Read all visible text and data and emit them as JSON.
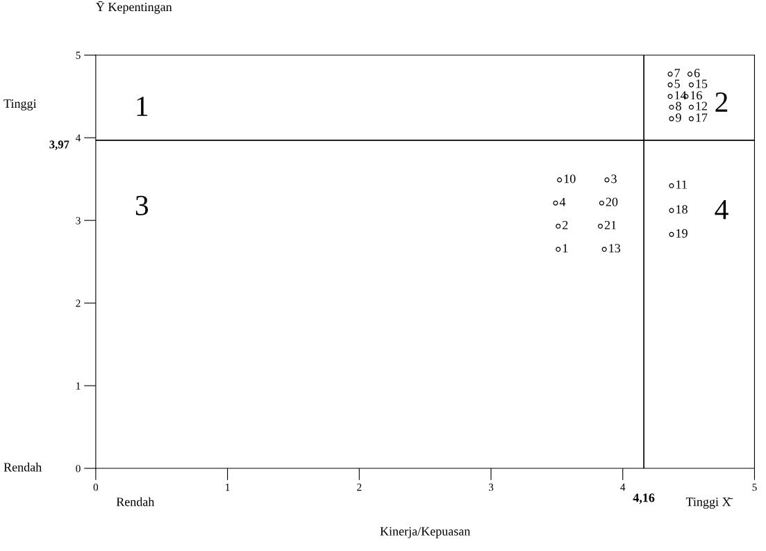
{
  "chart_data": {
    "type": "scatter",
    "ylabel": "Ȳ Kepentingan",
    "xlabel": "Kinerja/Kepuasan",
    "xlim": [
      0,
      5
    ],
    "ylim": [
      0,
      5
    ],
    "xticks": [
      0,
      1,
      2,
      3,
      4,
      5
    ],
    "yticks": [
      0,
      1,
      2,
      3,
      4,
      5
    ],
    "grid": false,
    "marker": "circle",
    "series": [
      {
        "color": "#000000",
        "x": [
          4.36,
          4.51,
          4.36,
          4.52,
          4.36,
          4.48,
          4.37,
          4.52,
          4.37,
          4.52,
          4.37,
          4.37,
          4.37,
          3.52,
          3.88,
          3.49,
          3.84,
          3.51,
          3.83,
          3.51,
          3.86
        ],
        "values": [
          4.77,
          4.77,
          4.64,
          4.64,
          4.5,
          4.5,
          4.37,
          4.37,
          4.23,
          4.23,
          3.42,
          3.12,
          2.83,
          3.49,
          3.49,
          3.21,
          3.21,
          2.93,
          2.93,
          2.65,
          2.65
        ]
      }
    ],
    "ref_lines": [
      {
        "axis": "x",
        "value": 4.16,
        "label": "4,16"
      },
      {
        "axis": "y",
        "value": 3.97,
        "label": "3,97"
      }
    ],
    "annotations": [
      {
        "text": "7",
        "x": 4.36,
        "y": 4.77
      },
      {
        "text": "6",
        "x": 4.51,
        "y": 4.77
      },
      {
        "text": "5",
        "x": 4.36,
        "y": 4.64
      },
      {
        "text": "15",
        "x": 4.52,
        "y": 4.64
      },
      {
        "text": "14",
        "x": 4.36,
        "y": 4.5
      },
      {
        "text": "16",
        "x": 4.48,
        "y": 4.5
      },
      {
        "text": "8",
        "x": 4.37,
        "y": 4.37
      },
      {
        "text": "12",
        "x": 4.52,
        "y": 4.37
      },
      {
        "text": "9",
        "x": 4.37,
        "y": 4.23
      },
      {
        "text": "17",
        "x": 4.52,
        "y": 4.23
      },
      {
        "text": "11",
        "x": 4.37,
        "y": 3.42
      },
      {
        "text": "18",
        "x": 4.37,
        "y": 3.12
      },
      {
        "text": "19",
        "x": 4.37,
        "y": 2.83
      },
      {
        "text": "10",
        "x": 3.52,
        "y": 3.49
      },
      {
        "text": "3",
        "x": 3.88,
        "y": 3.49
      },
      {
        "text": "4",
        "x": 3.49,
        "y": 3.21
      },
      {
        "text": "20",
        "x": 3.84,
        "y": 3.21
      },
      {
        "text": "2",
        "x": 3.51,
        "y": 2.93
      },
      {
        "text": "21",
        "x": 3.83,
        "y": 2.93
      },
      {
        "text": "1",
        "x": 3.51,
        "y": 2.65
      },
      {
        "text": "13",
        "x": 3.86,
        "y": 2.65
      },
      "1",
      "2",
      "3",
      "4",
      "Tinggi",
      "Rendah",
      "Rendah",
      "Tinggi X̄"
    ]
  }
}
